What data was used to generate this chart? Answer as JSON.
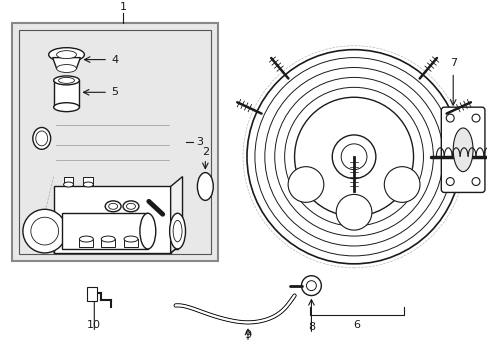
{
  "background_color": "#ffffff",
  "line_color": "#1a1a1a",
  "box_bg": "#e8e8e8",
  "inner_box_bg": "#d8d8d8",
  "figsize": [
    4.89,
    3.6
  ],
  "dpi": 100
}
